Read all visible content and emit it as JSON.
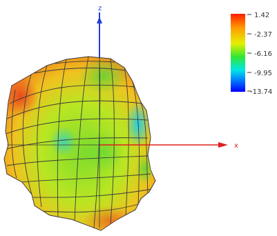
{
  "axes": {
    "z_label": "z",
    "x_label": "x",
    "z_color": "#1f3fd6",
    "x_color": "#e01e1e"
  },
  "colorbar": {
    "ticks": [
      "1.42",
      "-2.37",
      "-6.16",
      "-9.95",
      "-13.74"
    ],
    "colors_top_to_bottom": [
      "#ff1e00",
      "#ffb400",
      "#e6f000",
      "#33e633",
      "#00f0f0",
      "#004dff",
      "#0000ff"
    ]
  },
  "surface": {
    "mesh_color": "#3a3a3a",
    "dominant_colors": [
      "#8be02a",
      "#d9e820",
      "#f2b21e",
      "#ef5a1e",
      "#2fd6e8"
    ]
  }
}
